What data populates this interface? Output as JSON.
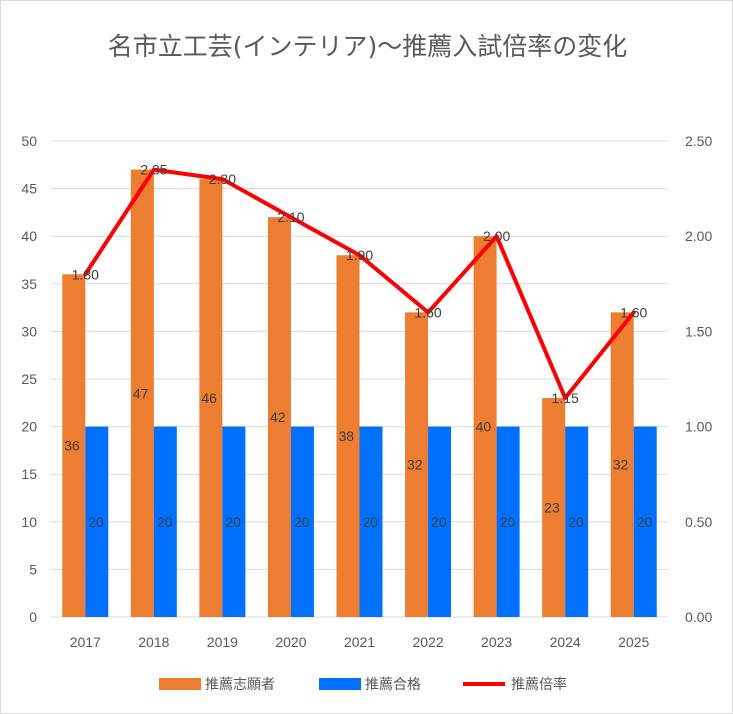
{
  "chart_data": {
    "type": "bar",
    "title": "名市立工芸(インテリア)～推薦入試倍率の変化",
    "categories": [
      "2017",
      "2018",
      "2019",
      "2020",
      "2021",
      "2022",
      "2023",
      "2024",
      "2025"
    ],
    "series": [
      {
        "name": "推薦志願者",
        "type": "bar",
        "axis": "left",
        "color": "#ED7D31",
        "values": [
          36,
          47,
          46,
          42,
          38,
          32,
          40,
          23,
          32
        ],
        "labels": [
          "36",
          "47",
          "46",
          "42",
          "38",
          "32",
          "40",
          "23",
          "32"
        ]
      },
      {
        "name": "推薦合格",
        "type": "bar",
        "axis": "left",
        "color": "#0070FF",
        "values": [
          20,
          20,
          20,
          20,
          20,
          20,
          20,
          20,
          20
        ],
        "labels": [
          "20",
          "20",
          "20",
          "20",
          "20",
          "20",
          "20",
          "20",
          "20"
        ]
      },
      {
        "name": "推薦倍率",
        "type": "line",
        "axis": "right",
        "color": "#FF0000",
        "values": [
          1.8,
          2.35,
          2.3,
          2.1,
          1.9,
          1.6,
          2.0,
          1.15,
          1.6
        ],
        "labels": [
          "1.80",
          "2.35",
          "2.30",
          "2.10",
          "1.90",
          "1.60",
          "2.00",
          "1.15",
          "1.60"
        ]
      }
    ],
    "y_left": {
      "min": 0,
      "max": 50,
      "ticks": [
        "0",
        "5",
        "10",
        "15",
        "20",
        "25",
        "30",
        "35",
        "40",
        "45",
        "50"
      ]
    },
    "y_right": {
      "min": 0,
      "max": 2.5,
      "ticks": [
        "0.00",
        "0.50",
        "1.00",
        "1.50",
        "2.00",
        "2.50"
      ]
    },
    "grid": true,
    "legend_position": "bottom"
  }
}
